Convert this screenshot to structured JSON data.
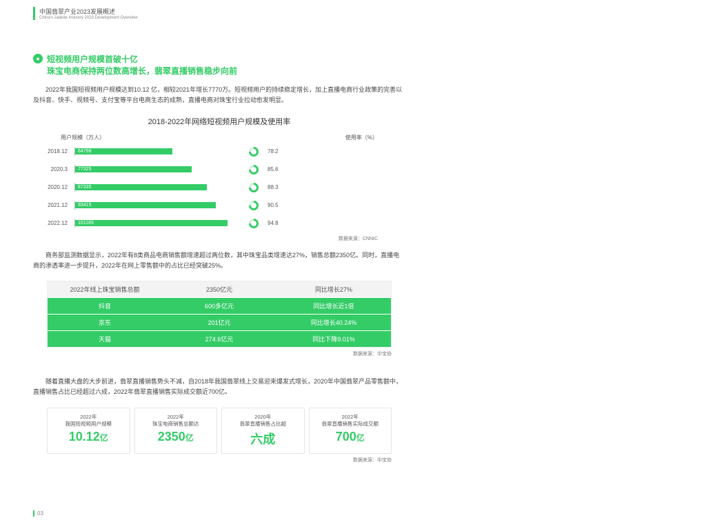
{
  "header": {
    "cn": "中国翡翠产业2023发展概述",
    "en": "China's Jadeite Industry 2023 Development Overview"
  },
  "title": {
    "line1": "短视频用户规模首破十亿",
    "line2": "珠宝电商保持两位数高增长，翡翠直播销售稳步向前"
  },
  "para1": "2022年我国短视频用户规模达到10.12 亿，相较2021年增长7770万。短视频用户的持续稳定增长，加上直播电商行业政策的完善以及抖音、快手、视频号、支付宝等平台电商生态的成熟，直播电商对珠宝行业拉动愈发明显。",
  "chart": {
    "title": "2018-2022年网络短视频用户规模及使用率",
    "legend_l": "用户规模（万人）",
    "legend_r": "使用率（%）",
    "max": 110000,
    "rows": [
      {
        "y": "2018.12",
        "v": 64798,
        "p": "78.2"
      },
      {
        "y": "2020.3",
        "v": 77325,
        "p": "85.6"
      },
      {
        "y": "2020.12",
        "v": 87335,
        "p": "88.3"
      },
      {
        "y": "2021.12",
        "v": 93415,
        "p": "90.5"
      },
      {
        "y": "2022.12",
        "v": 101185,
        "p": "94.8"
      }
    ],
    "source": "数据来源：CNNIC"
  },
  "para2": "商务部监测数据显示，2022年有8类商品电商销售额增速超过两位数，其中珠宝品类增速达27%，销售总额2350亿。同时，直播电商的渗透率进一步提升，2022年在网上零售额中的占比已经突破25%。",
  "table1": {
    "head": [
      "2022年线上珠宝销售总额",
      "2350亿元",
      "同比增长27%"
    ],
    "rows": [
      [
        "抖音",
        "600多亿元",
        "同比增长近1倍"
      ],
      [
        "京东",
        "201亿元",
        "同比增长40.24%"
      ],
      [
        "天猫",
        "274.6亿元",
        "同比下降9.01%"
      ]
    ],
    "source": "数据来源：中宝协"
  },
  "para3": "随着直播大盘的大步前进，翡翠直播销售势头不减，自2018年我国翡翠线上交易迎来爆发式增长，2020年中国翡翠产品零售额中，直播销售占比已经超过六成，2022年翡翠直播销售实际成交额近700亿。",
  "cards": [
    {
      "t1": "2022年",
      "t2": "我国短视频用户规模",
      "v": "10.12",
      "u": "亿"
    },
    {
      "t1": "2022年",
      "t2": "珠宝电商销售总额达",
      "v": "2350",
      "u": "亿"
    },
    {
      "t1": "2020年",
      "t2": "翡翠直播销售占比超",
      "v": "六成",
      "u": ""
    },
    {
      "t1": "2022年",
      "t2": "翡翠直播销售实际成交额",
      "v": "700",
      "u": "亿"
    }
  ],
  "cards_source": "数据来源：中宝协",
  "pagenum": "03"
}
